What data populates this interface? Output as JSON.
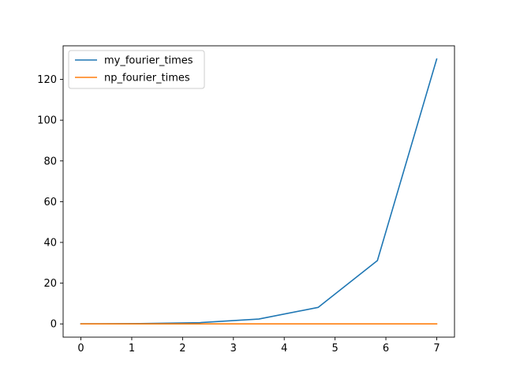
{
  "chart_data": {
    "type": "line",
    "xlim": [
      -0.35,
      7.35
    ],
    "ylim": [
      -6.5,
      136.5
    ],
    "xticks": [
      0,
      1,
      2,
      3,
      4,
      5,
      6,
      7
    ],
    "yticks": [
      0,
      20,
      40,
      60,
      80,
      100,
      120
    ],
    "grid": false,
    "legend_position": "top-left",
    "series": [
      {
        "name": "my_fourier_times",
        "color": "#1f77b4",
        "x": [
          0,
          1.1667,
          2.3333,
          3.5,
          4.6667,
          5.8333,
          7
        ],
        "y": [
          0.05,
          0.15,
          0.6,
          2.4,
          8.1,
          31.1,
          130.0
        ]
      },
      {
        "name": "np_fourier_times",
        "color": "#ff7f0e",
        "x": [
          0,
          1.1667,
          2.3333,
          3.5,
          4.6667,
          5.8333,
          7
        ],
        "y": [
          0.0,
          0.0,
          0.0,
          0.0,
          0.0,
          0.0,
          0.0
        ]
      }
    ]
  }
}
